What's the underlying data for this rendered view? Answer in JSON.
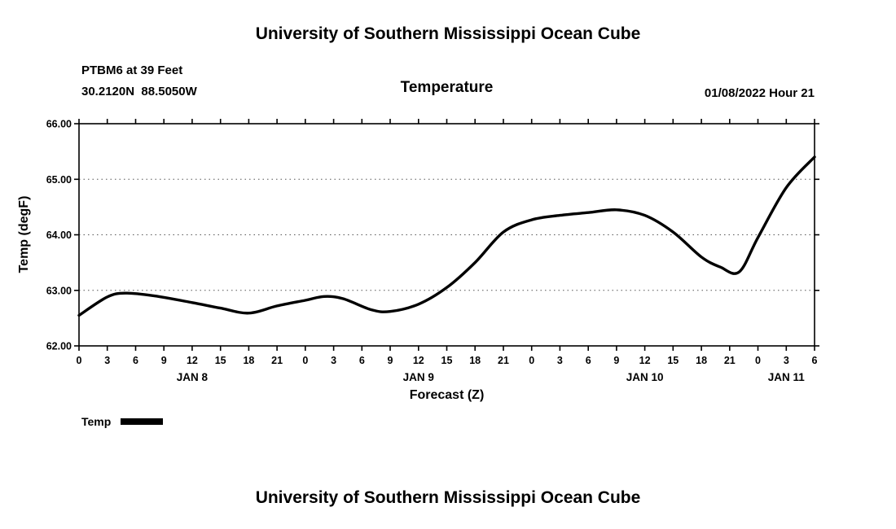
{
  "page": {
    "title_top": "University of Southern Mississippi Ocean Cube",
    "title_bottom": "University of Southern Mississippi Ocean Cube"
  },
  "header": {
    "station_line1": "PTBM6 at 39 Feet",
    "station_line2": "30.2120N  88.5050W",
    "chart_title": "Temperature",
    "datetime": "01/08/2022 Hour 21"
  },
  "legend": {
    "label": "Temp"
  },
  "chart_data": {
    "type": "line",
    "title": "Temperature",
    "xlabel": "Forecast (Z)",
    "ylabel": "Temp (degF)",
    "ylim": [
      62.0,
      66.0
    ],
    "yticks": [
      62,
      63,
      64,
      65,
      66
    ],
    "ytick_labels": [
      "62.00",
      "63.00",
      "64.00",
      "65.00",
      "66.00"
    ],
    "x_hours_range": [
      0,
      78
    ],
    "xtick_step": 3,
    "xtick_labels": [
      "0",
      "3",
      "6",
      "9",
      "12",
      "15",
      "18",
      "21",
      "0",
      "3",
      "6",
      "9",
      "12",
      "15",
      "18",
      "21",
      "0",
      "3",
      "6",
      "9",
      "12",
      "15",
      "18",
      "21",
      "0",
      "3",
      "6"
    ],
    "day_labels": [
      {
        "label": "JAN 8",
        "hour": 12
      },
      {
        "label": "JAN 9",
        "hour": 36
      },
      {
        "label": "JAN 10",
        "hour": 60
      },
      {
        "label": "JAN 11",
        "hour": 75
      }
    ],
    "grid": "horizontal-dotted",
    "legend_position": "below-left",
    "series": [
      {
        "name": "Temp",
        "color": "#000000",
        "x_hours": [
          0,
          3,
          5,
          8,
          12,
          15,
          18,
          21,
          24,
          26,
          28,
          31,
          33,
          36,
          39,
          42,
          45,
          48,
          51,
          54,
          57,
          60,
          63,
          66,
          68,
          70,
          72,
          75,
          78
        ],
        "values": [
          62.55,
          62.88,
          62.95,
          62.9,
          62.78,
          62.68,
          62.59,
          62.72,
          62.82,
          62.89,
          62.85,
          62.65,
          62.62,
          62.75,
          63.05,
          63.5,
          64.05,
          64.27,
          64.35,
          64.4,
          64.45,
          64.35,
          64.05,
          63.6,
          63.42,
          63.33,
          63.95,
          64.85,
          65.4
        ]
      }
    ]
  }
}
